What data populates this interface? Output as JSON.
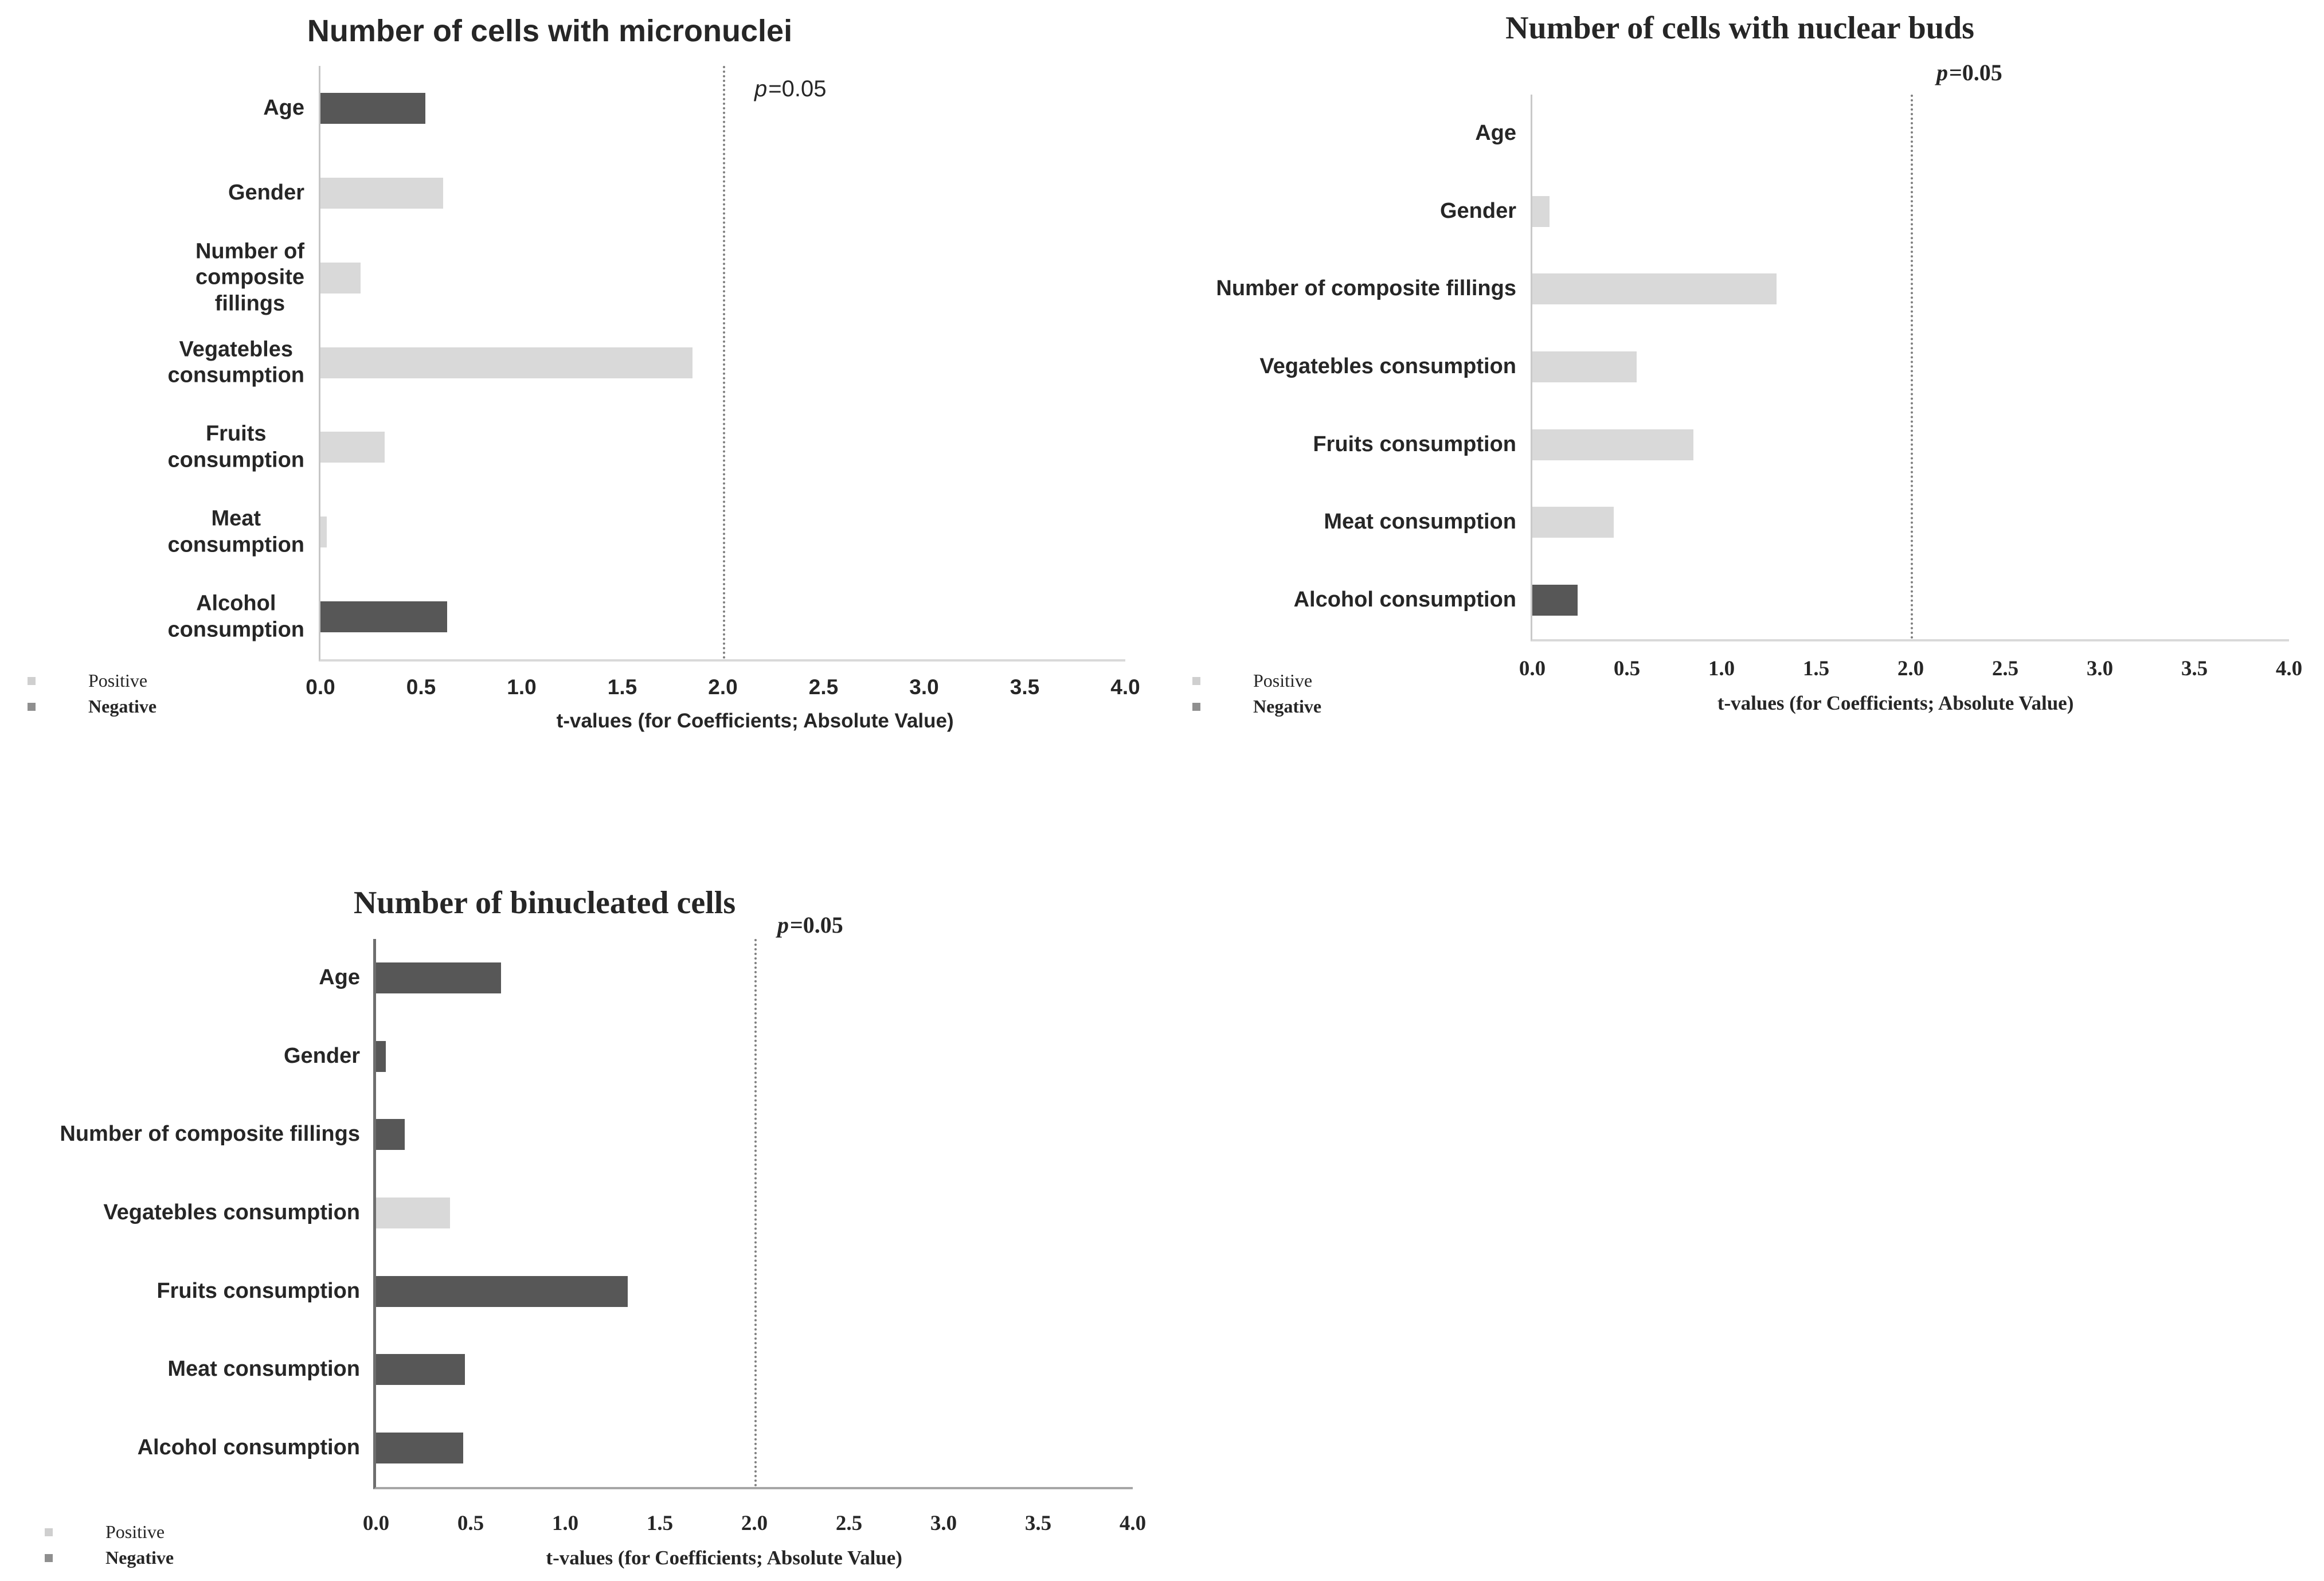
{
  "figure": {
    "background": "#ffffff"
  },
  "colors": {
    "positive": "#d9d9d9",
    "negative": "#575757",
    "dotted_line": "#7f7f7f",
    "positive_swatch": "#cfcfcf",
    "negative_swatch": "#8f8f8f"
  },
  "legend": {
    "positive_label": "Positive",
    "negative_label": "Negative"
  },
  "x_axis": {
    "label": "t-values (for Coefficients; Absolute Value)",
    "ticks": [
      "0.0",
      "0.5",
      "1.0",
      "1.5",
      "2.0",
      "2.5",
      "3.0",
      "3.5",
      "4.0"
    ],
    "min": 0.0,
    "max": 4.0
  },
  "p_line": {
    "italic": "p",
    "rest": "=0.05",
    "t_value": 2.0
  },
  "chart_data": [
    {
      "type": "bar",
      "orientation": "horizontal",
      "title": "Number of cells with micronuclei",
      "xlabel": "t-values (for Coefficients; Absolute Value)",
      "xlim": [
        0.0,
        4.0
      ],
      "grid": false,
      "legend_position": "bottom-left",
      "categories": [
        "Age",
        "Gender",
        "Number of composite fillings",
        "Vegatebles consumption",
        "Fruits consumption",
        "Meat consumption",
        "Alcohol consumption"
      ],
      "values": [
        0.52,
        0.61,
        0.2,
        1.85,
        0.32,
        0.03,
        0.63
      ],
      "signs": [
        "negative",
        "positive",
        "positive",
        "positive",
        "positive",
        "positive",
        "negative"
      ],
      "reference_line": {
        "t": 2.0,
        "label": "p=0.05"
      }
    },
    {
      "type": "bar",
      "orientation": "horizontal",
      "title": "Number of cells with nuclear buds",
      "xlabel": "t-values (for Coefficients; Absolute Value)",
      "xlim": [
        0.0,
        4.0
      ],
      "grid": false,
      "legend_position": "bottom-left",
      "categories": [
        "Age",
        "Gender",
        "Number of composite fillings",
        "Vegatebles consumption",
        "Fruits consumption",
        "Meat consumption",
        "Alcohol consumption"
      ],
      "values": [
        0.0,
        0.09,
        1.29,
        0.55,
        0.85,
        0.43,
        0.24
      ],
      "signs": [
        "positive",
        "positive",
        "positive",
        "positive",
        "positive",
        "positive",
        "negative"
      ],
      "reference_line": {
        "t": 2.0,
        "label": "p=0.05"
      }
    },
    {
      "type": "bar",
      "orientation": "horizontal",
      "title": "Number of binucleated cells",
      "xlabel": "t-values (for Coefficients; Absolute Value)",
      "xlim": [
        0.0,
        4.0
      ],
      "grid": false,
      "legend_position": "bottom-left",
      "categories": [
        "Age",
        "Gender",
        "Number of composite fillings",
        "Vegatebles consumption",
        "Fruits consumption",
        "Meat consumption",
        "Alcohol consumption"
      ],
      "values": [
        0.66,
        0.05,
        0.15,
        0.39,
        1.33,
        0.47,
        0.46
      ],
      "signs": [
        "negative",
        "negative",
        "negative",
        "positive",
        "negative",
        "negative",
        "negative"
      ],
      "reference_line": {
        "t": 2.0,
        "label": "p=0.05"
      }
    }
  ]
}
